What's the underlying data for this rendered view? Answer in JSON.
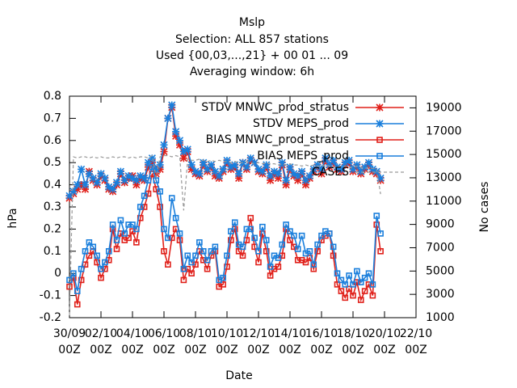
{
  "chart_data": {
    "type": "line",
    "title": "Mslp",
    "subtitle": [
      "Selection: ALL    857 stations",
      "Used {00,03,...,21} + 00 01 ... 09",
      "Averaging window:  6h"
    ],
    "xlabel": "Date",
    "ylabel": "hPa",
    "y2label": "No cases",
    "x": [
      0,
      6,
      12,
      18,
      24,
      30,
      36,
      42,
      48,
      54,
      60,
      66,
      72,
      78,
      84,
      90,
      96,
      102,
      108,
      114,
      120,
      126,
      132,
      138,
      144,
      150,
      156,
      162,
      168,
      174,
      180,
      186,
      192,
      198,
      204,
      210,
      216,
      222,
      228,
      234,
      240,
      246,
      252,
      258,
      264,
      270,
      276,
      282,
      288,
      294,
      300,
      306,
      312,
      318,
      324,
      330,
      336,
      342,
      348,
      354,
      360,
      366,
      372,
      378,
      384,
      390,
      396,
      402,
      408,
      414,
      420,
      426,
      432,
      438,
      444,
      450,
      456,
      462,
      468,
      474
    ],
    "xlim": [
      0,
      528
    ],
    "xticks": [
      {
        "value": 0,
        "label": "30/09\n00Z"
      },
      {
        "value": 48,
        "label": "02/10\n00Z"
      },
      {
        "value": 96,
        "label": "04/10\n00Z"
      },
      {
        "value": 144,
        "label": "06/10\n00Z"
      },
      {
        "value": 192,
        "label": "08/10\n00Z"
      },
      {
        "value": 240,
        "label": "10/10\n00Z"
      },
      {
        "value": 288,
        "label": "12/10\n00Z"
      },
      {
        "value": 336,
        "label": "14/10\n00Z"
      },
      {
        "value": 384,
        "label": "16/10\n00Z"
      },
      {
        "value": 432,
        "label": "18/10\n00Z"
      },
      {
        "value": 480,
        "label": "20/10\n00Z"
      },
      {
        "value": 528,
        "label": "22/10\n00Z"
      }
    ],
    "ylim": [
      -0.2,
      0.8
    ],
    "yticks": [
      -0.2,
      -0.1,
      0,
      0.1,
      0.2,
      0.3,
      0.4,
      0.5,
      0.6,
      0.7,
      0.8
    ],
    "y2lim": [
      1000,
      20000
    ],
    "y2ticks": [
      1000,
      3000,
      5000,
      7000,
      9000,
      11000,
      13000,
      15000,
      17000,
      19000
    ],
    "legend": "top-right",
    "series": [
      {
        "name": "STDV MNWC_prod_stratus",
        "color": "#e0201a",
        "marker": "star",
        "values": [
          0.34,
          0.36,
          0.38,
          0.4,
          0.38,
          0.46,
          0.42,
          0.4,
          0.44,
          0.42,
          0.38,
          0.37,
          0.4,
          0.45,
          0.41,
          0.43,
          0.44,
          0.4,
          0.43,
          0.42,
          0.48,
          0.5,
          0.45,
          0.47,
          0.55,
          0.7,
          0.75,
          0.62,
          0.58,
          0.52,
          0.55,
          0.47,
          0.45,
          0.44,
          0.49,
          0.46,
          0.48,
          0.44,
          0.43,
          0.46,
          0.5,
          0.47,
          0.48,
          0.43,
          0.5,
          0.47,
          0.51,
          0.5,
          0.46,
          0.45,
          0.48,
          0.42,
          0.45,
          0.43,
          0.49,
          0.4,
          0.47,
          0.44,
          0.42,
          0.45,
          0.4,
          0.43,
          0.46,
          0.48,
          0.45,
          0.51,
          0.48,
          0.5,
          0.47,
          0.46,
          0.49,
          0.5,
          0.46,
          0.48,
          0.45,
          0.47,
          0.49,
          0.46,
          0.45,
          0.42
        ]
      },
      {
        "name": "STDV MEPS_prod",
        "color": "#1a7fdc",
        "marker": "star",
        "values": [
          0.35,
          0.37,
          0.4,
          0.47,
          0.4,
          0.45,
          0.43,
          0.41,
          0.45,
          0.43,
          0.39,
          0.38,
          0.41,
          0.46,
          0.42,
          0.44,
          0.43,
          0.42,
          0.44,
          0.43,
          0.5,
          0.52,
          0.47,
          0.49,
          0.58,
          0.7,
          0.76,
          0.64,
          0.6,
          0.55,
          0.56,
          0.49,
          0.46,
          0.45,
          0.5,
          0.47,
          0.49,
          0.46,
          0.44,
          0.47,
          0.51,
          0.48,
          0.49,
          0.45,
          0.5,
          0.48,
          0.52,
          0.5,
          0.47,
          0.46,
          0.49,
          0.44,
          0.46,
          0.45,
          0.5,
          0.42,
          0.48,
          0.45,
          0.44,
          0.46,
          0.42,
          0.44,
          0.47,
          0.49,
          0.47,
          0.52,
          0.49,
          0.51,
          0.48,
          0.47,
          0.5,
          0.51,
          0.47,
          0.49,
          0.46,
          0.48,
          0.5,
          0.47,
          0.46,
          0.43
        ]
      },
      {
        "name": "BIAS MNWC_prod_stratus",
        "color": "#e0201a",
        "marker": "square",
        "values": [
          -0.06,
          -0.02,
          -0.14,
          -0.03,
          0.04,
          0.08,
          0.1,
          0.05,
          -0.02,
          0.02,
          0.06,
          0.2,
          0.11,
          0.18,
          0.15,
          0.16,
          0.19,
          0.14,
          0.25,
          0.3,
          0.36,
          0.45,
          0.38,
          0.3,
          0.1,
          0.04,
          0.16,
          0.2,
          0.15,
          -0.03,
          0.02,
          0.0,
          0.04,
          0.1,
          0.06,
          0.02,
          0.08,
          0.1,
          -0.06,
          -0.05,
          0.03,
          0.15,
          0.2,
          0.1,
          0.08,
          0.15,
          0.25,
          0.12,
          0.05,
          0.18,
          0.1,
          -0.01,
          0.02,
          0.03,
          0.08,
          0.2,
          0.15,
          0.12,
          0.06,
          0.06,
          0.05,
          0.07,
          0.02,
          0.1,
          0.15,
          0.17,
          0.18,
          0.08,
          -0.05,
          -0.08,
          -0.11,
          -0.07,
          -0.1,
          -0.04,
          -0.12,
          -0.08,
          -0.05,
          -0.1,
          0.22,
          0.1
        ]
      },
      {
        "name": "BIAS MEPS_prod",
        "color": "#1a7fdc",
        "marker": "square",
        "values": [
          -0.03,
          0.0,
          -0.08,
          0.02,
          0.1,
          0.14,
          0.12,
          0.08,
          0.02,
          0.05,
          0.1,
          0.22,
          0.15,
          0.24,
          0.18,
          0.22,
          0.22,
          0.2,
          0.3,
          0.35,
          0.42,
          0.48,
          0.42,
          0.37,
          0.2,
          0.16,
          0.34,
          0.25,
          0.18,
          0.02,
          0.08,
          0.05,
          0.08,
          0.14,
          0.1,
          0.06,
          0.1,
          0.12,
          -0.03,
          -0.02,
          0.08,
          0.19,
          0.23,
          0.13,
          0.12,
          0.2,
          0.2,
          0.16,
          0.1,
          0.21,
          0.15,
          0.03,
          0.08,
          0.07,
          0.13,
          0.22,
          0.19,
          0.17,
          0.11,
          0.17,
          0.09,
          0.1,
          0.04,
          0.13,
          0.17,
          0.19,
          0.18,
          0.12,
          0.0,
          -0.03,
          -0.05,
          -0.01,
          -0.05,
          0.01,
          -0.04,
          -0.02,
          0.0,
          -0.05,
          0.26,
          0.18
        ]
      },
      {
        "name": "CASES",
        "color": "#999999",
        "marker": "none",
        "dash": true,
        "axis": "y2",
        "values": [
          1200,
          14800,
          14700,
          14800,
          14800,
          14700,
          14800,
          14700,
          14800,
          14700,
          14700,
          14800,
          14700,
          14800,
          14800,
          14700,
          14800,
          14700,
          14800,
          14800,
          14700,
          14900,
          13000,
          14800,
          14900,
          14900,
          14800,
          14900,
          14800,
          10200,
          14600,
          14500,
          14500,
          14600,
          14500,
          14400,
          14500,
          14400,
          14500,
          14400,
          14400,
          14300,
          14400,
          14300,
          14300,
          14400,
          14300,
          14200,
          14300,
          14200,
          14300,
          14200,
          14200,
          14100,
          14200,
          14100,
          14200,
          14100,
          14100,
          14000,
          14100,
          14000,
          14100,
          14000,
          14000,
          14100,
          14000,
          13900,
          14000,
          13900,
          14000,
          13900,
          13900,
          14000,
          13900,
          13800,
          13900,
          13800,
          13700,
          11600
        ]
      }
    ]
  }
}
